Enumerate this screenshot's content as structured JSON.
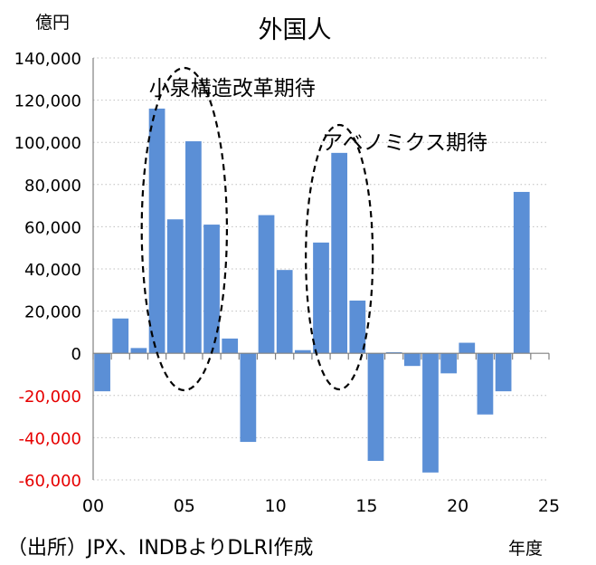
{
  "chart_data": {
    "type": "bar",
    "title": "外国人",
    "unit_label": "億円",
    "xlabel": "年度",
    "source_note": "（出所）JPX、INDBよりDLRI作成",
    "ylim": [
      -60000,
      140000
    ],
    "yticks": [
      -60000,
      -40000,
      -20000,
      0,
      20000,
      40000,
      60000,
      80000,
      100000,
      120000,
      140000
    ],
    "ytick_labels": [
      "-60,000",
      "-40,000",
      "-20,000",
      "0",
      "20,000",
      "40,000",
      "60,000",
      "80,000",
      "100,000",
      "120,000",
      "140,000"
    ],
    "xlim": [
      0,
      25
    ],
    "xticks": [
      0,
      5,
      10,
      15,
      20,
      25
    ],
    "xtick_labels": [
      "00",
      "05",
      "10",
      "15",
      "20",
      "25"
    ],
    "categories": [
      2000,
      2001,
      2002,
      2003,
      2004,
      2005,
      2006,
      2007,
      2008,
      2009,
      2010,
      2011,
      2012,
      2013,
      2014,
      2015,
      2016,
      2017,
      2018,
      2019,
      2020,
      2021,
      2022,
      2023
    ],
    "values": [
      -18000,
      16500,
      2500,
      116000,
      63500,
      100500,
      61000,
      7000,
      -42000,
      65500,
      39500,
      1500,
      52500,
      95000,
      25000,
      -51000,
      500,
      -6000,
      -56500,
      -9500,
      5000,
      -29000,
      -18000,
      76500
    ],
    "annotations": [
      {
        "text": "小泉構造改革期待",
        "years": [
          2003,
          2006
        ]
      },
      {
        "text": "アベノミクス期待",
        "years": [
          2012,
          2014
        ]
      }
    ],
    "grid": true,
    "colors": {
      "bar": "#5b8fd6",
      "negative_tick": "#e60000",
      "grid": "#bfbfbf"
    }
  }
}
